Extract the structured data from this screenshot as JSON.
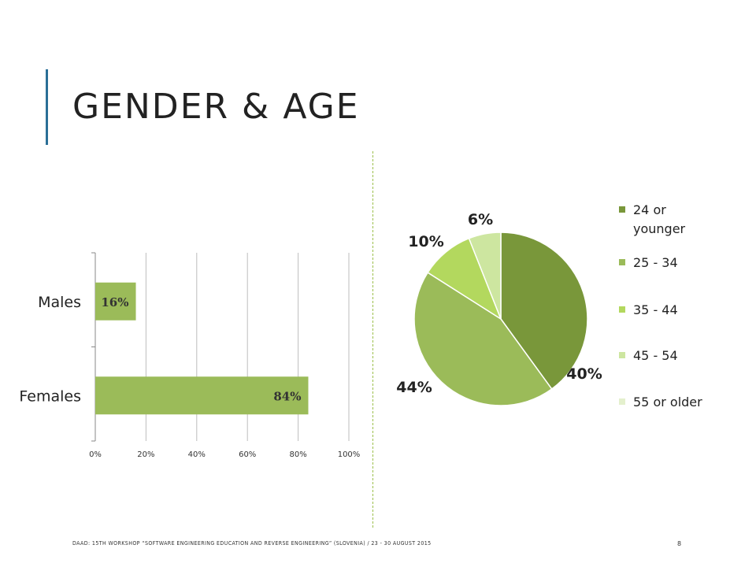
{
  "slide": {
    "title": "GENDER & AGE",
    "footer": "DAAD: 15TH WORKSHOP “SOFTWARE ENGINEERING EDUCATION AND REVERSE ENGINEERING” (SLOVENIA) / 23 - 30 AUGUST 2015",
    "page_number": "8"
  },
  "chart_data": [
    {
      "type": "bar",
      "orientation": "horizontal",
      "categories": [
        "Males",
        "Females"
      ],
      "values": [
        16,
        84
      ],
      "value_labels": [
        "16%",
        "84%"
      ],
      "x_ticks": [
        "0%",
        "20%",
        "40%",
        "60%",
        "80%",
        "100%"
      ],
      "xlim": [
        0,
        100
      ],
      "grid": "vertical",
      "color": "#9bbb59"
    },
    {
      "type": "pie",
      "categories": [
        "24 or younger",
        "25 - 34",
        "35 - 44",
        "45 - 54",
        "55 or older"
      ],
      "values": [
        40,
        44,
        10,
        6,
        0
      ],
      "value_labels": [
        "40%",
        "44%",
        "10%",
        "6%",
        ""
      ],
      "colors": [
        "#79973a",
        "#9bbb59",
        "#b3d85e",
        "#cde6a0",
        "#e4f0cd"
      ],
      "legend_position": "right"
    }
  ]
}
